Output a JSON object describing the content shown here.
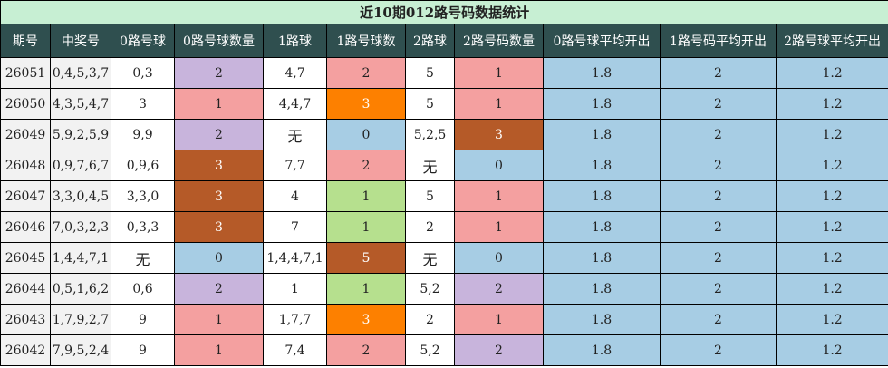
{
  "title": "近10期012路号码数据统计",
  "headers": [
    "期号",
    "中奖号",
    "0路号球",
    "0路号球数量",
    "1路球",
    "1路号球数",
    "2路球",
    "2路号码数量",
    "0路号球平均开出",
    "1路号码平均开出",
    "2路号球平均开出"
  ],
  "colors": {
    "purple": "#c8b4dc",
    "pink": "#f4a0a0",
    "orange": "#fd8000",
    "brown": "#b55a28",
    "blue": "#a7cde4",
    "green": "#b6e08e"
  },
  "rows": [
    {
      "period": "26051",
      "numbers": "0,4,5,3,7",
      "r0": "0,3",
      "c0": "2",
      "r1": "4,7",
      "c1": "2",
      "r2": "5",
      "c2": "1",
      "a0": "1.8",
      "a1": "2",
      "a2": "1.2"
    },
    {
      "period": "26050",
      "numbers": "4,3,5,4,7",
      "r0": "3",
      "c0": "1",
      "r1": "4,4,7",
      "c1": "3",
      "r2": "5",
      "c2": "1",
      "a0": "1.8",
      "a1": "2",
      "a2": "1.2"
    },
    {
      "period": "26049",
      "numbers": "5,9,2,5,9",
      "r0": "9,9",
      "c0": "2",
      "r1": "无",
      "c1": "0",
      "r2": "5,2,5",
      "c2": "3",
      "a0": "1.8",
      "a1": "2",
      "a2": "1.2"
    },
    {
      "period": "26048",
      "numbers": "0,9,7,6,7",
      "r0": "0,9,6",
      "c0": "3",
      "r1": "7,7",
      "c1": "2",
      "r2": "无",
      "c2": "0",
      "a0": "1.8",
      "a1": "2",
      "a2": "1.2"
    },
    {
      "period": "26047",
      "numbers": "3,3,0,4,5",
      "r0": "3,3,0",
      "c0": "3",
      "r1": "4",
      "c1": "1",
      "r2": "5",
      "c2": "1",
      "a0": "1.8",
      "a1": "2",
      "a2": "1.2"
    },
    {
      "period": "26046",
      "numbers": "7,0,3,2,3",
      "r0": "0,3,3",
      "c0": "3",
      "r1": "7",
      "c1": "1",
      "r2": "2",
      "c2": "1",
      "a0": "1.8",
      "a1": "2",
      "a2": "1.2"
    },
    {
      "period": "26045",
      "numbers": "1,4,4,7,1",
      "r0": "无",
      "c0": "0",
      "r1": "1,4,4,7,1",
      "c1": "5",
      "r2": "无",
      "c2": "0",
      "a0": "1.8",
      "a1": "2",
      "a2": "1.2"
    },
    {
      "period": "26044",
      "numbers": "0,5,1,6,2",
      "r0": "0,6",
      "c0": "2",
      "r1": "1",
      "c1": "1",
      "r2": "5,2",
      "c2": "2",
      "a0": "1.8",
      "a1": "2",
      "a2": "1.2"
    },
    {
      "period": "26043",
      "numbers": "1,7,9,2,7",
      "r0": "9",
      "c0": "1",
      "r1": "1,7,7",
      "c1": "3",
      "r2": "2",
      "c2": "1",
      "a0": "1.8",
      "a1": "2",
      "a2": "1.2"
    },
    {
      "period": "26042",
      "numbers": "7,9,5,2,4",
      "r0": "9",
      "c0": "1",
      "r1": "7,4",
      "c1": "2",
      "r2": "5,2",
      "c2": "2",
      "a0": "1.8",
      "a1": "2",
      "a2": "1.2"
    }
  ]
}
